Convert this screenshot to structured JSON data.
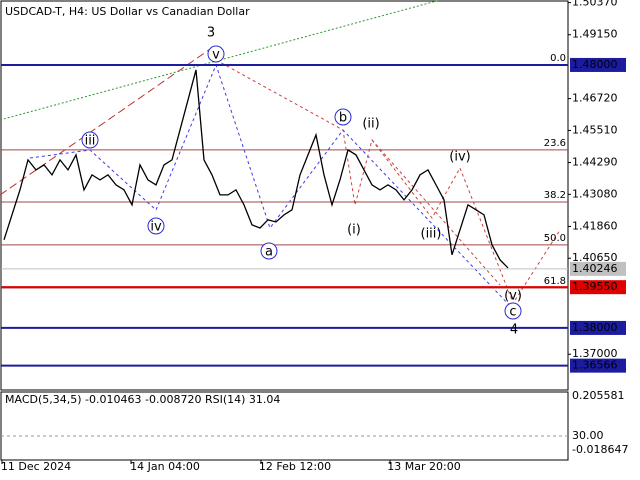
{
  "chart_data": {
    "type": "line",
    "title": "USDCAD-T, H4:  US Dollar vs Canadian Dollar",
    "color": "#000000",
    "values": [
      1.4135,
      1.423,
      1.4325,
      1.4439,
      1.4401,
      1.442,
      1.4382,
      1.4439,
      1.4401,
      1.4458,
      1.4325,
      1.4382,
      1.4363,
      1.4382,
      1.4344,
      1.4325,
      1.4268,
      1.442,
      1.4363,
      1.4344,
      1.442,
      1.4439,
      1.4553,
      1.4667,
      1.4781,
      1.4439,
      1.4382,
      1.4306,
      1.4306,
      1.4325,
      1.4268,
      1.4192,
      1.418,
      1.4211,
      1.4203,
      1.423,
      1.4249,
      1.4382,
      1.4458,
      1.4534,
      1.4382,
      1.4268,
      1.4363,
      1.4477,
      1.4458,
      1.4401,
      1.4344,
      1.4325,
      1.4344,
      1.4325,
      1.4287,
      1.4325,
      1.4382,
      1.4401,
      1.4344,
      1.4287,
      1.4078,
      1.4173,
      1.4268,
      1.4249,
      1.423,
      1.4116,
      1.4059,
      1.4028
    ],
    "ylim": [
      1.3564,
      1.5047
    ],
    "yticks": [
      {
        "value": 1.5037,
        "label": "1.50370"
      },
      {
        "value": 1.4915,
        "label": "1.49150"
      },
      {
        "value": 1.4672,
        "label": "1.46720"
      },
      {
        "value": 1.4551,
        "label": "1.45510"
      },
      {
        "value": 1.4429,
        "label": "1.44290"
      },
      {
        "value": 1.4308,
        "label": "1.43080"
      },
      {
        "value": 1.4186,
        "label": "1.41860"
      },
      {
        "value": 1.4065,
        "label": "1.40650"
      },
      {
        "value": 1.37,
        "label": "1.37000"
      }
    ],
    "xtick_labels": [
      "11 Dec 2024",
      "14 Jan 04:00",
      "12 Feb 12:00",
      "13 Mar 20:00"
    ],
    "levels": [
      {
        "value": 1.48,
        "label": "1.48000",
        "color": "#1c1ca0"
      },
      {
        "value": 1.40246,
        "label": "1.40246",
        "color": "#c0c0c0"
      },
      {
        "value": 1.3955,
        "label": "1.39550",
        "color": "#e00000"
      },
      {
        "value": 1.38,
        "label": "1.38000",
        "color": "#1c1ca0"
      },
      {
        "value": 1.36566,
        "label": "1.36566",
        "color": "#1c1ca0"
      }
    ],
    "fibo": [
      {
        "value": 1.48,
        "label": "0.0"
      },
      {
        "value": 1.4477,
        "label": "23.6"
      },
      {
        "value": 1.4279,
        "label": "38.2"
      },
      {
        "value": 1.4116,
        "label": "50.0"
      },
      {
        "value": 1.3952,
        "label": "61.8"
      }
    ],
    "waves": [
      "3",
      "v",
      "iii",
      "iv",
      "a",
      "b",
      "(ii)",
      "(i)",
      "(iii)",
      "(iv)",
      "(v)",
      "c",
      "4"
    ],
    "indicator": {
      "title": "MACD(5,34,5) -0.010463 -0.008720 RSI(14) 31.04",
      "ticks": [
        "0.205581",
        "30.00",
        "-0.018647"
      ]
    }
  }
}
